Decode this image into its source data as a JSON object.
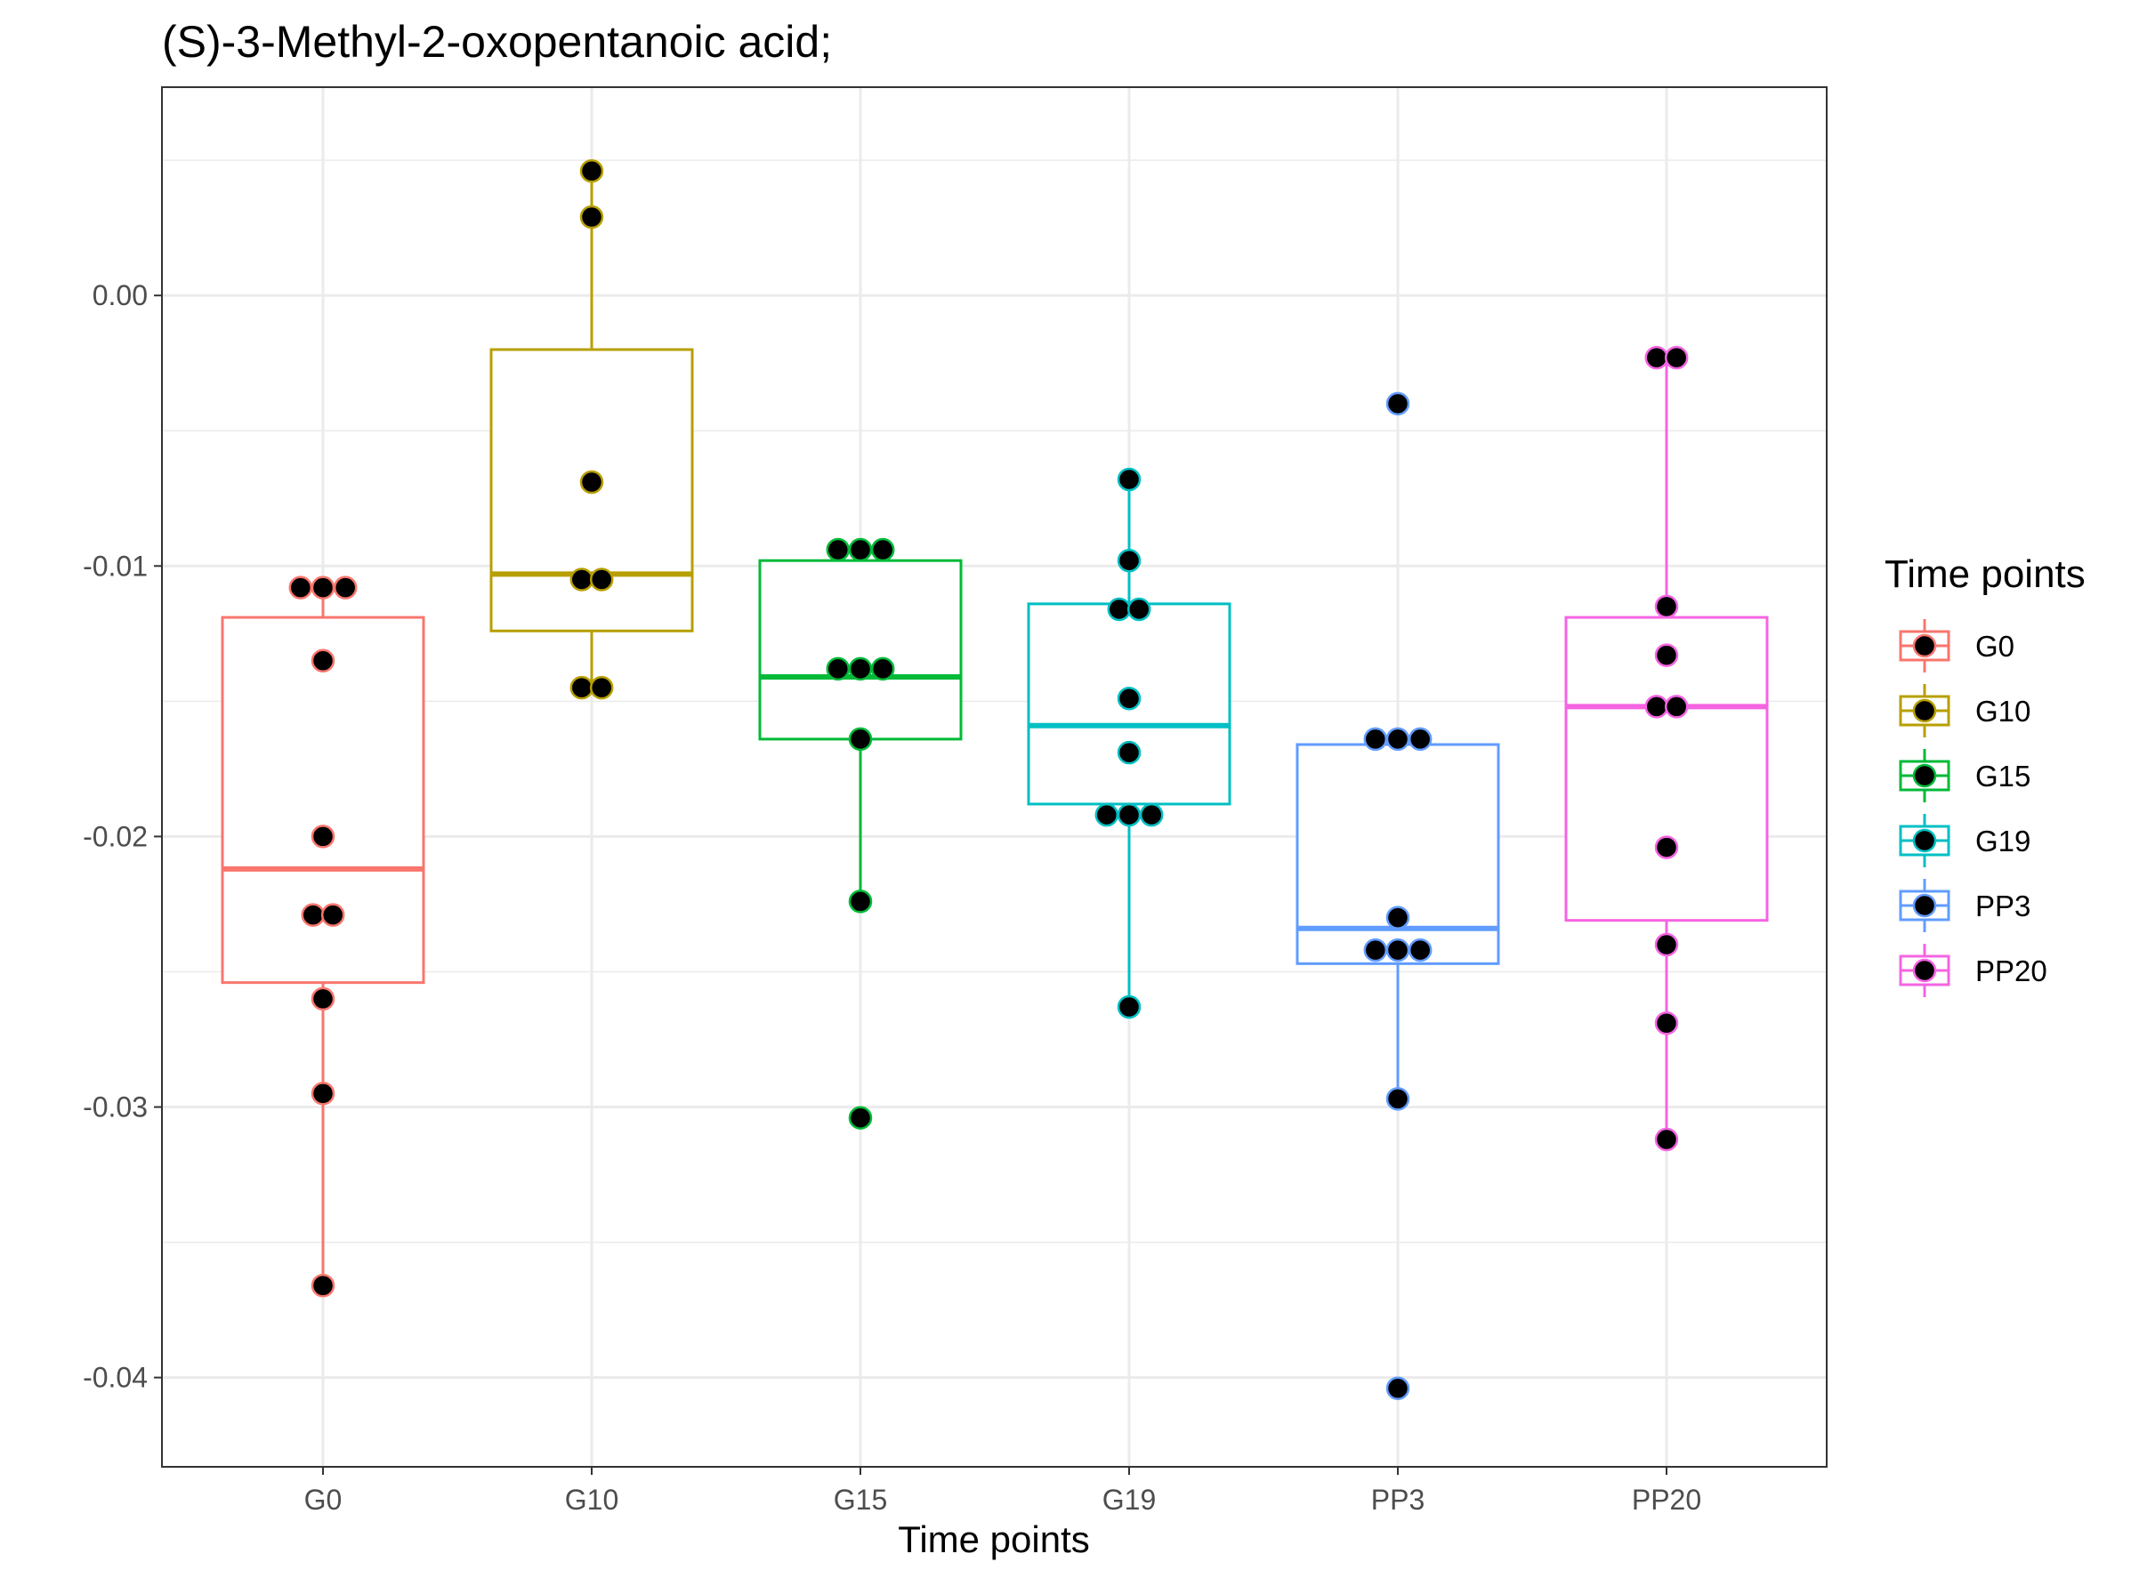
{
  "chart_data": {
    "type": "box",
    "title": "(S)-3-Methyl-2-oxopentanoic acid;",
    "xlabel": "Time points",
    "ylabel": "",
    "categories": [
      "G0",
      "G10",
      "G15",
      "G19",
      "PP3",
      "PP20"
    ],
    "ylim": [
      -0.0433,
      0.0077
    ],
    "yticks": [
      0.0,
      -0.01,
      -0.02,
      -0.03,
      -0.04
    ],
    "ytick_labels": [
      "0.00",
      "-0.01",
      "-0.02",
      "-0.03",
      "-0.04"
    ],
    "grid": true,
    "legend": {
      "title": "Time points",
      "position": "right",
      "entries": [
        "G0",
        "G10",
        "G15",
        "G19",
        "PP3",
        "PP20"
      ]
    },
    "series": [
      {
        "name": "G0",
        "color": "#F8766D",
        "box": {
          "lower_whisker": -0.0366,
          "q1": -0.0254,
          "median": -0.0212,
          "q3": -0.0119,
          "upper_whisker": -0.0108
        },
        "points": [
          {
            "x": -0.09,
            "y": -0.0108
          },
          {
            "x": 0.0,
            "y": -0.0108
          },
          {
            "x": 0.09,
            "y": -0.0108
          },
          {
            "x": 0.0,
            "y": -0.0135
          },
          {
            "x": 0.0,
            "y": -0.02
          },
          {
            "x": -0.04,
            "y": -0.0229
          },
          {
            "x": 0.04,
            "y": -0.0229
          },
          {
            "x": 0.0,
            "y": -0.026
          },
          {
            "x": 0.0,
            "y": -0.0295
          },
          {
            "x": 0.0,
            "y": -0.0366
          }
        ]
      },
      {
        "name": "G10",
        "color": "#B79F00",
        "box": {
          "lower_whisker": -0.0145,
          "q1": -0.0124,
          "median": -0.0103,
          "q3": -0.002,
          "upper_whisker": 0.0046
        },
        "points": [
          {
            "x": 0.0,
            "y": 0.0046
          },
          {
            "x": 0.0,
            "y": 0.0029
          },
          {
            "x": 0.0,
            "y": -0.0069
          },
          {
            "x": -0.04,
            "y": -0.0105
          },
          {
            "x": 0.04,
            "y": -0.0105
          },
          {
            "x": -0.04,
            "y": -0.0145
          },
          {
            "x": 0.04,
            "y": -0.0145
          }
        ]
      },
      {
        "name": "G15",
        "color": "#00BA38",
        "box": {
          "lower_whisker": -0.0224,
          "q1": -0.0164,
          "median": -0.0141,
          "q3": -0.0098,
          "upper_whisker": -0.0094
        },
        "points": [
          {
            "x": -0.09,
            "y": -0.0094
          },
          {
            "x": 0.0,
            "y": -0.0094
          },
          {
            "x": 0.09,
            "y": -0.0094
          },
          {
            "x": -0.09,
            "y": -0.0138
          },
          {
            "x": 0.0,
            "y": -0.0138
          },
          {
            "x": 0.09,
            "y": -0.0138
          },
          {
            "x": 0.0,
            "y": -0.0164
          },
          {
            "x": 0.0,
            "y": -0.0224
          },
          {
            "x": 0.0,
            "y": -0.0304
          }
        ]
      },
      {
        "name": "G19",
        "color": "#00BFC4",
        "box": {
          "lower_whisker": -0.0263,
          "q1": -0.0188,
          "median": -0.0159,
          "q3": -0.0114,
          "upper_whisker": -0.0068
        },
        "points": [
          {
            "x": 0.0,
            "y": -0.0068
          },
          {
            "x": 0.0,
            "y": -0.0098
          },
          {
            "x": -0.04,
            "y": -0.0116
          },
          {
            "x": 0.04,
            "y": -0.0116
          },
          {
            "x": 0.0,
            "y": -0.0149
          },
          {
            "x": 0.0,
            "y": -0.0169
          },
          {
            "x": -0.09,
            "y": -0.0192
          },
          {
            "x": 0.0,
            "y": -0.0192
          },
          {
            "x": 0.09,
            "y": -0.0192
          },
          {
            "x": 0.0,
            "y": -0.0263
          }
        ]
      },
      {
        "name": "PP3",
        "color": "#619CFF",
        "box": {
          "lower_whisker": -0.0297,
          "q1": -0.0247,
          "median": -0.0234,
          "q3": -0.0166,
          "upper_whisker": -0.0164
        },
        "points": [
          {
            "x": 0.0,
            "y": -0.004
          },
          {
            "x": -0.09,
            "y": -0.0164
          },
          {
            "x": 0.0,
            "y": -0.0164
          },
          {
            "x": 0.09,
            "y": -0.0164
          },
          {
            "x": 0.0,
            "y": -0.023
          },
          {
            "x": -0.09,
            "y": -0.0242
          },
          {
            "x": 0.0,
            "y": -0.0242
          },
          {
            "x": 0.09,
            "y": -0.0242
          },
          {
            "x": 0.0,
            "y": -0.0297
          },
          {
            "x": 0.0,
            "y": -0.0404
          }
        ]
      },
      {
        "name": "PP20",
        "color": "#F564E3",
        "box": {
          "lower_whisker": -0.0312,
          "q1": -0.0231,
          "median": -0.0152,
          "q3": -0.0119,
          "upper_whisker": -0.0023
        },
        "points": [
          {
            "x": -0.04,
            "y": -0.0023
          },
          {
            "x": 0.04,
            "y": -0.0023
          },
          {
            "x": 0.0,
            "y": -0.0115
          },
          {
            "x": 0.0,
            "y": -0.0133
          },
          {
            "x": -0.04,
            "y": -0.0152
          },
          {
            "x": 0.04,
            "y": -0.0152
          },
          {
            "x": 0.0,
            "y": -0.0204
          },
          {
            "x": 0.0,
            "y": -0.024
          },
          {
            "x": 0.0,
            "y": -0.0269
          },
          {
            "x": 0.0,
            "y": -0.0312
          }
        ]
      }
    ]
  }
}
